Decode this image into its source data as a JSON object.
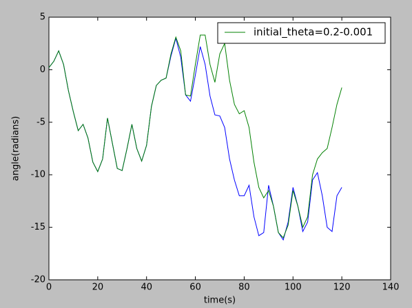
{
  "chart_data": {
    "type": "line",
    "xlabel": "time(s)",
    "ylabel": "angle(radians)",
    "x": [
      0,
      2,
      4,
      6,
      8,
      10,
      12,
      14,
      16,
      18,
      20,
      22,
      24,
      26,
      28,
      30,
      32,
      34,
      36,
      38,
      40,
      42,
      44,
      46,
      48,
      50,
      52,
      54,
      56,
      58,
      60,
      62,
      64,
      66,
      68,
      70,
      72,
      74,
      76,
      78,
      80,
      82,
      84,
      86,
      88,
      90,
      92,
      94,
      96,
      98,
      100,
      102,
      104,
      106,
      108,
      110,
      112,
      114,
      116,
      118,
      120
    ],
    "series": [
      {
        "color": "#0000ff",
        "values": [
          0.2,
          0.8,
          1.8,
          0.5,
          -2,
          -4,
          -5.8,
          -5.2,
          -6.5,
          -8.8,
          -9.7,
          -8.5,
          -4.6,
          -7,
          -9.4,
          -9.6,
          -7.5,
          -5.2,
          -7.5,
          -8.7,
          -7.2,
          -3.5,
          -1.5,
          -1.0,
          -0.8,
          1.3,
          3.0,
          1.2,
          -2.4,
          -3.0,
          -0.5,
          2.2,
          0.5,
          -2.5,
          -4.3,
          -4.4,
          -5.5,
          -8.5,
          -10.5,
          -12.0,
          -12,
          -11,
          -14,
          -15.8,
          -15.5,
          -11,
          -13,
          -15.5,
          -16.2,
          -14.5,
          -11.2,
          -13,
          -15.4,
          -14.5,
          -10.5,
          -9.8,
          -12,
          -15,
          -15.4,
          -12,
          -11.2
        ]
      },
      {
        "name": "initial_theta=0.2-0.001",
        "color": "#008000",
        "values": [
          0.2,
          0.8,
          1.8,
          0.5,
          -2,
          -4,
          -5.8,
          -5.2,
          -6.5,
          -8.8,
          -9.7,
          -8.5,
          -4.6,
          -7,
          -9.4,
          -9.6,
          -7.5,
          -5.2,
          -7.5,
          -8.7,
          -7.2,
          -3.5,
          -1.5,
          -1.0,
          -0.8,
          1.5,
          3.1,
          1.8,
          -2.4,
          -2.5,
          0.5,
          3.3,
          3.3,
          0.5,
          -1.2,
          1.5,
          2.5,
          -1.0,
          -3.3,
          -4.2,
          -3.9,
          -5.5,
          -8.8,
          -11.2,
          -12.2,
          -11.5,
          -13,
          -15.5,
          -16,
          -14.8,
          -11.5,
          -13,
          -15,
          -14,
          -10,
          -8.5,
          -7.9,
          -7.5,
          -5.5,
          -3.3,
          -1.7
        ]
      }
    ],
    "xlim": [
      0,
      140
    ],
    "xticks": [
      0,
      20,
      40,
      60,
      80,
      100,
      120,
      140
    ],
    "ylim": [
      -20,
      5
    ],
    "yticks": [
      -20,
      -15,
      -10,
      -5,
      0,
      5
    ],
    "legend": "upper right"
  }
}
